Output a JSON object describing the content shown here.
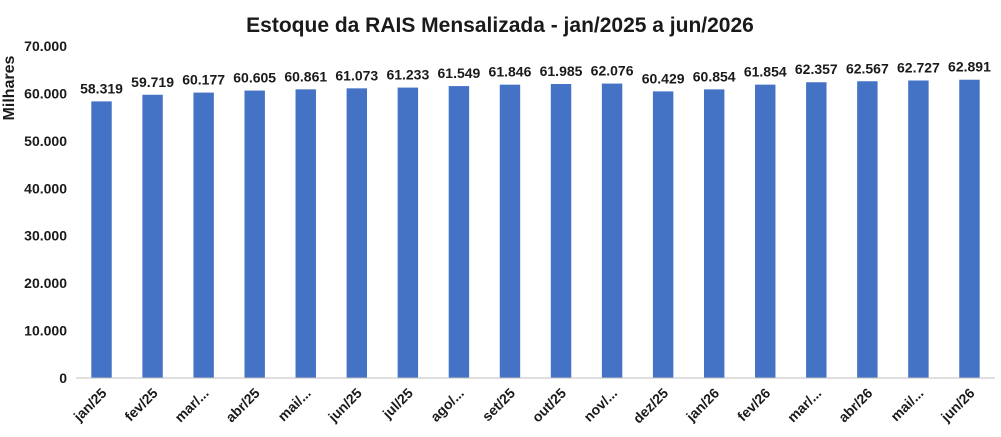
{
  "chart_data": {
    "type": "bar",
    "title": "Estoque da RAIS Mensalizada - jan/2025 a jun/2026",
    "xlabel": "",
    "ylabel": "Milhares",
    "ylim": [
      0,
      70000
    ],
    "yticks": [
      0,
      10000,
      20000,
      30000,
      40000,
      50000,
      60000,
      70000
    ],
    "ytick_labels": [
      "0",
      "10.000",
      "20.000",
      "30.000",
      "40.000",
      "50.000",
      "60.000",
      "70.000"
    ],
    "grid": false,
    "legend": "none",
    "bar_color": "#4472C4",
    "categories": [
      "jan/25",
      "fev/25",
      "mar/...",
      "abr/25",
      "mai/...",
      "jun/25",
      "jul/25",
      "ago/...",
      "set/25",
      "out/25",
      "nov/...",
      "dez/25",
      "jan/26",
      "fev/26",
      "mar/...",
      "abr/26",
      "mai/...",
      "jun/26"
    ],
    "values": [
      58319,
      59719,
      60177,
      60605,
      60861,
      61073,
      61233,
      61549,
      61846,
      61985,
      62076,
      60429,
      60854,
      61854,
      62357,
      62567,
      62727,
      62891
    ],
    "data_labels": [
      "58.319",
      "59.719",
      "60.177",
      "60.605",
      "60.861",
      "61.073",
      "61.233",
      "61.549",
      "61.846",
      "61.985",
      "62.076",
      "60.429",
      "60.854",
      "61.854",
      "62.357",
      "62.567",
      "62.727",
      "62.891"
    ]
  }
}
